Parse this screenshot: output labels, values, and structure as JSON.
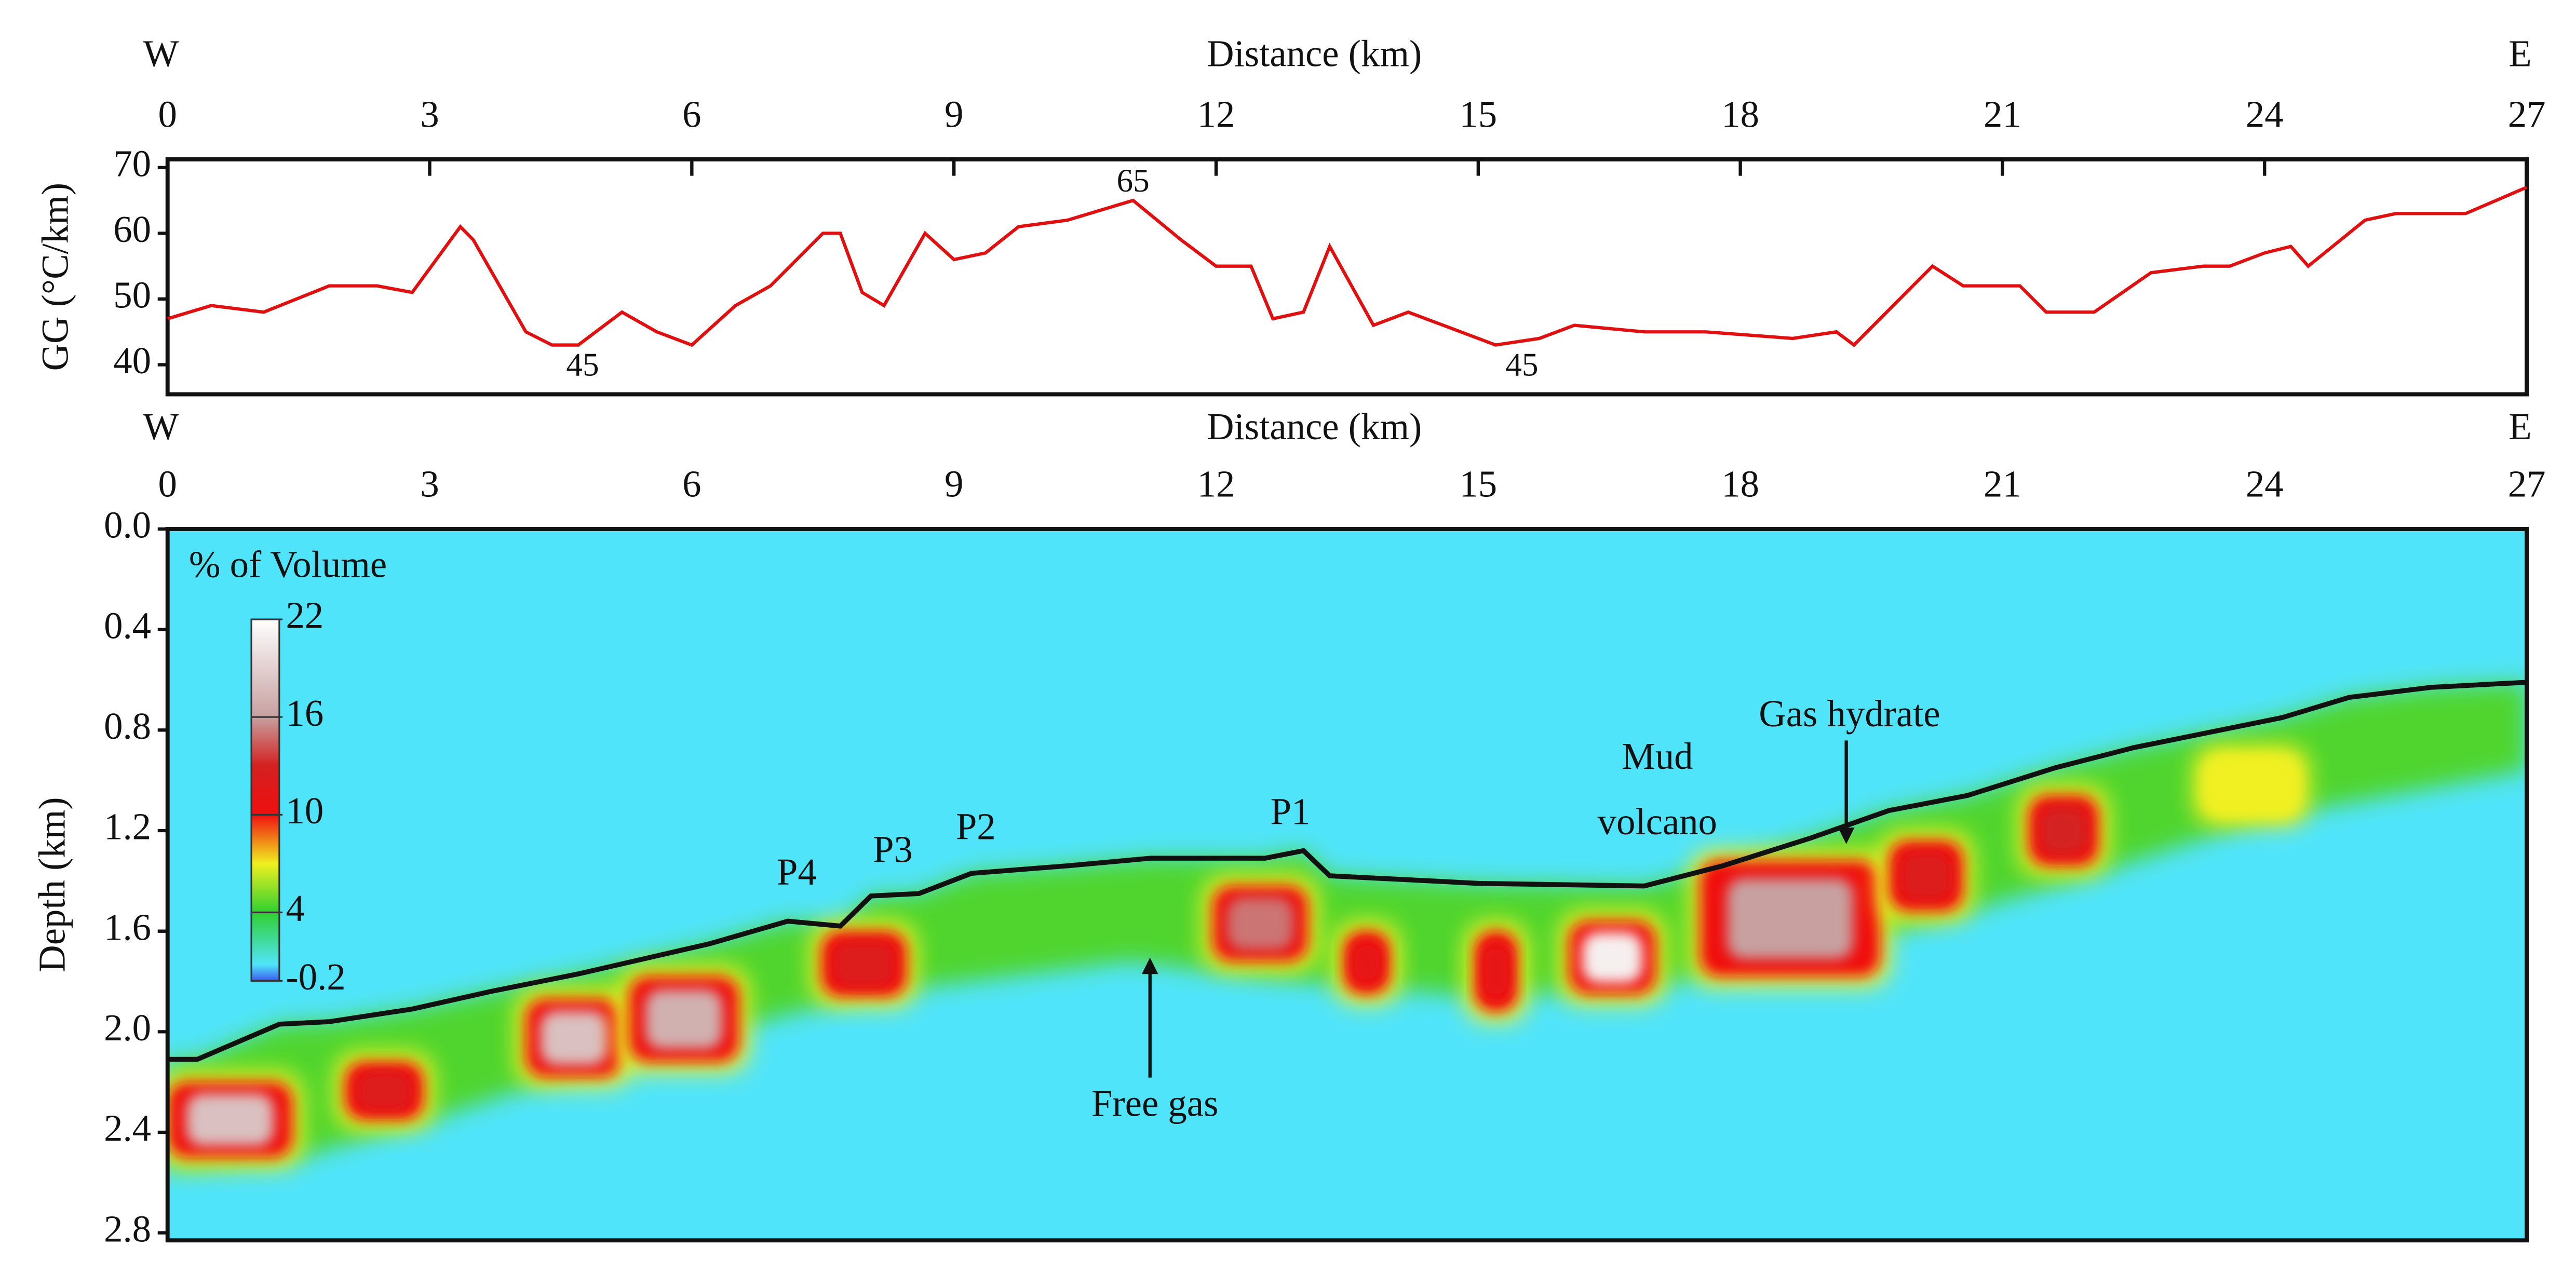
{
  "chart_data": [
    {
      "type": "line",
      "x_label": "Distance (km)",
      "y_label": "GG (°C/km)",
      "west": "W",
      "east": "E",
      "color": "#e01010",
      "x": [
        0,
        0.5,
        1.1,
        1.85,
        2.4,
        2.8,
        3.35,
        3.5,
        4.1,
        4.4,
        4.7,
        5.2,
        5.6,
        6.0,
        6.5,
        6.9,
        7.5,
        7.7,
        7.95,
        8.2,
        8.67,
        9.0,
        9.36,
        9.74,
        10.3,
        11.05,
        11.6,
        12.0,
        12.4,
        12.65,
        13.0,
        13.3,
        13.8,
        14.2,
        14.6,
        15.2,
        15.7,
        16.1,
        16.9,
        17.6,
        18.6,
        19.1,
        19.3,
        20.2,
        20.55,
        21.2,
        21.5,
        22.05,
        22.7,
        23.3,
        23.6,
        24.0,
        24.3,
        24.5,
        25.15,
        25.5,
        26.3,
        27
      ],
      "values": [
        47,
        49,
        48,
        52,
        52,
        51,
        61,
        59,
        45,
        43,
        43,
        48,
        45,
        43,
        49,
        52,
        60,
        60,
        51,
        49,
        60,
        56,
        57,
        61,
        62,
        65,
        59,
        55,
        55,
        47,
        48,
        58,
        46,
        48,
        46,
        43,
        44,
        46,
        45,
        45,
        44,
        45,
        43,
        55,
        52,
        52,
        48,
        48,
        54,
        55,
        55,
        57,
        58,
        55,
        62,
        63,
        63,
        67
      ],
      "xlim": [
        0,
        27
      ],
      "xticks": [
        0,
        3,
        6,
        9,
        12,
        15,
        18,
        21,
        24,
        27
      ],
      "ylim": [
        35.5,
        71.25
      ],
      "yticks": [
        40,
        50,
        60,
        70
      ],
      "annotations": [
        {
          "text": "65",
          "x": 11.05,
          "y": 67.5
        },
        {
          "text": "45",
          "x": 4.75,
          "y": 39.5
        },
        {
          "text": "45",
          "x": 15.5,
          "y": 39.5
        }
      ]
    },
    {
      "type": "section",
      "x_label": "Distance (km)",
      "y_label": "Depth (km)",
      "west": "W",
      "east": "E",
      "colorbar_label": "% of Volume",
      "xlim": [
        0,
        27
      ],
      "xticks": [
        0,
        3,
        6,
        9,
        12,
        15,
        18,
        21,
        24,
        27
      ],
      "ylim": [
        0,
        2.83
      ],
      "yticks": [
        {
          "value": 0,
          "label": "0.0"
        },
        0.4,
        0.8,
        1.2,
        1.6,
        {
          "value": 2,
          "label": "2.0"
        },
        2.4,
        2.8
      ],
      "colorbar_ticks": [
        22,
        16,
        10,
        4,
        -0.2
      ],
      "colorscale": [
        [
          -0.2,
          "#3c5cf0"
        ],
        [
          0.8,
          "#50e4fa"
        ],
        [
          4,
          "#30d030"
        ],
        [
          7,
          "#f0f020"
        ],
        [
          10,
          "#f01010"
        ],
        [
          13,
          "#d42020"
        ],
        [
          16,
          "#c8a0a0"
        ],
        [
          22,
          "#ffffff"
        ]
      ],
      "background_value": 0.8,
      "layer_value": 4.5,
      "seafloor": {
        "x": [
          0,
          0.34,
          1.28,
          1.85,
          2.8,
          3.7,
          4.7,
          6.2,
          7.1,
          7.7,
          8.05,
          8.6,
          9.2,
          10.3,
          11.25,
          12.56,
          13.0,
          13.3,
          15.0,
          16.9,
          17.8,
          18.8,
          19.7,
          20.6,
          21.6,
          22.5,
          24.2,
          24.97,
          25.9,
          27
        ],
        "depth": [
          2.11,
          2.11,
          1.97,
          1.96,
          1.91,
          1.84,
          1.77,
          1.65,
          1.56,
          1.58,
          1.46,
          1.45,
          1.37,
          1.34,
          1.31,
          1.31,
          1.28,
          1.38,
          1.41,
          1.42,
          1.34,
          1.23,
          1.12,
          1.06,
          0.95,
          0.87,
          0.75,
          0.67,
          0.63,
          0.61
        ]
      },
      "layer_base": {
        "x": [
          0,
          1.5,
          3,
          5,
          8,
          11,
          13,
          15,
          17,
          20,
          22,
          24,
          27
        ],
        "depth": [
          2.55,
          2.5,
          2.35,
          2.12,
          1.85,
          1.72,
          1.8,
          1.86,
          1.82,
          1.58,
          1.38,
          1.15,
          0.96
        ]
      },
      "patches": [
        {
          "x0": 0,
          "x1": 1.43,
          "top": 2.2,
          "bottom": 2.5,
          "value": 18
        },
        {
          "x0": 2.03,
          "x1": 2.93,
          "top": 2.12,
          "bottom": 2.35,
          "value": 12
        },
        {
          "x0": 4.1,
          "x1": 5.2,
          "top": 1.87,
          "bottom": 2.18,
          "value": 18
        },
        {
          "x0": 5.28,
          "x1": 6.54,
          "top": 1.78,
          "bottom": 2.12,
          "value": 17
        },
        {
          "x0": 7.48,
          "x1": 8.46,
          "top": 1.6,
          "bottom": 1.86,
          "value": 12
        },
        {
          "x0": 11.96,
          "x1": 13.05,
          "top": 1.42,
          "bottom": 1.72,
          "value": 15
        },
        {
          "x0": 13.46,
          "x1": 13.99,
          "top": 1.6,
          "bottom": 1.85,
          "value": 11
        },
        {
          "x0": 14.96,
          "x1": 15.45,
          "top": 1.6,
          "bottom": 1.92,
          "value": 11
        },
        {
          "x0": 16.04,
          "x1": 17.03,
          "top": 1.56,
          "bottom": 1.85,
          "value": 21
        },
        {
          "x0": 17.54,
          "x1": 19.6,
          "top": 1.32,
          "bottom": 1.78,
          "value": 16
        },
        {
          "x0": 19.7,
          "x1": 20.55,
          "top": 1.24,
          "bottom": 1.52,
          "value": 12
        },
        {
          "x0": 21.3,
          "x1": 22.1,
          "top": 1.06,
          "bottom": 1.34,
          "value": 13
        },
        {
          "x0": 23.3,
          "x1": 24.4,
          "top": 0.9,
          "bottom": 1.14,
          "value": 7
        }
      ],
      "annotations": [
        {
          "text": "P4",
          "x": 7.2,
          "y": 1.38
        },
        {
          "text": "P3",
          "x": 8.3,
          "y": 1.29
        },
        {
          "text": "P2",
          "x": 9.25,
          "y": 1.2
        },
        {
          "text": "P1",
          "x": 12.85,
          "y": 1.14
        },
        {
          "text": "Mud",
          "x": 17.05,
          "y": 0.92
        },
        {
          "text": "volcano",
          "x": 17.05,
          "y": 1.18
        },
        {
          "text": "Gas hydrate",
          "x": 19.25,
          "y": 0.75
        },
        {
          "text": "Free gas",
          "x": 11.3,
          "y": 2.3
        }
      ]
    }
  ]
}
